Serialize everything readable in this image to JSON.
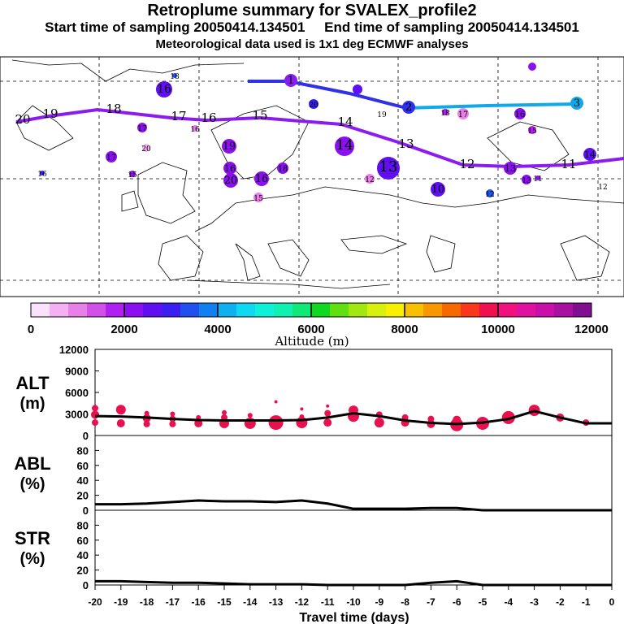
{
  "title": {
    "line1": "Retroplume summary for SVALEX_profile2",
    "line2": "Start time of sampling 20050414.134501     End time of sampling 20050414.134501",
    "line3": "Meteorological data used is 1x1 deg ECMWF analyses"
  },
  "colors": {
    "accent_line": "#000000",
    "altitude_dots": "#e8104f",
    "track_purple": "#8a1cf0",
    "track_blue": "#3030e8",
    "track_cyan": "#10a8e8"
  },
  "map": {
    "description": "Map of Europe / North Atlantic with retroplume tracks and cluster markers labelled by travel days",
    "main_track_labels": [
      "20",
      "19",
      "18",
      "17",
      "16",
      "15",
      "14",
      "13",
      "12",
      "11"
    ],
    "upper_track_labels": [
      "1",
      "2",
      "3"
    ],
    "cluster_labels": [
      "18",
      "16",
      "17",
      "16",
      "20",
      "17",
      "16",
      "15",
      "19",
      "16",
      "20",
      "16",
      "18",
      "15",
      "14",
      "13",
      "12",
      "10",
      "12",
      "13",
      "11",
      "12",
      "13",
      "14",
      "15",
      "16",
      "17",
      "18",
      "19",
      "20"
    ]
  },
  "colorbar": {
    "ticks": [
      "0",
      "2000",
      "4000",
      "6000",
      "8000",
      "10000",
      "12000"
    ],
    "label": "Altitude (m)",
    "colors": [
      "#fbe2fb",
      "#f4b0f4",
      "#e880e8",
      "#d050e8",
      "#b020f0",
      "#8a10f0",
      "#6010f0",
      "#3a20f0",
      "#2050f0",
      "#1080f0",
      "#10b0f0",
      "#10d8f0",
      "#10f0d8",
      "#10f0b0",
      "#10e878",
      "#10d820",
      "#60e010",
      "#a0e810",
      "#d8f010",
      "#f8f000",
      "#f8c000",
      "#f89800",
      "#f86800",
      "#f83818",
      "#f01050",
      "#f01080",
      "#e010a0",
      "#c810a8",
      "#a810a0",
      "#801090"
    ]
  },
  "chart_data": [
    {
      "type": "line",
      "panel": "ALT",
      "ylabel": "ALT\n(m)",
      "ylim": [
        0,
        12000
      ],
      "yticks": [
        "0",
        "3000",
        "6000",
        "9000",
        "12000"
      ],
      "x": [
        -20,
        -19,
        -18,
        -17,
        -16,
        -15,
        -14,
        -13,
        -12,
        -11,
        -10,
        -9,
        -8,
        -7,
        -6,
        -5,
        -4,
        -3,
        -2,
        -1,
        0
      ],
      "series": [
        {
          "name": "mean altitude",
          "values": [
            2700,
            2650,
            2500,
            2300,
            2150,
            2100,
            2100,
            2100,
            2150,
            2500,
            3100,
            2700,
            2100,
            1750,
            1600,
            1800,
            2300,
            3400,
            2500,
            1700,
            1700
          ]
        }
      ],
      "dots": [
        {
          "x": -20,
          "ys": [
            1800,
            2900,
            3800
          ],
          "r": [
            4,
            5,
            4
          ]
        },
        {
          "x": -19,
          "ys": [
            1700,
            3600
          ],
          "r": [
            5,
            6
          ]
        },
        {
          "x": -18,
          "ys": [
            1600,
            2400,
            3100
          ],
          "r": [
            4,
            5,
            3
          ]
        },
        {
          "x": -17,
          "ys": [
            1600,
            2300,
            3000
          ],
          "r": [
            4,
            4,
            3
          ]
        },
        {
          "x": -16,
          "ys": [
            1700,
            2500
          ],
          "r": [
            5,
            3
          ]
        },
        {
          "x": -15,
          "ys": [
            1700,
            2500,
            3200
          ],
          "r": [
            6,
            4,
            3
          ]
        },
        {
          "x": -14,
          "ys": [
            1700,
            2800
          ],
          "r": [
            7,
            3
          ]
        },
        {
          "x": -13,
          "ys": [
            1800,
            4700
          ],
          "r": [
            9,
            2
          ]
        },
        {
          "x": -12,
          "ys": [
            1800,
            2600,
            3700
          ],
          "r": [
            7,
            3,
            2
          ]
        },
        {
          "x": -11,
          "ys": [
            1800,
            3100,
            4100
          ],
          "r": [
            5,
            4,
            2
          ]
        },
        {
          "x": -10,
          "ys": [
            2700,
            3500
          ],
          "r": [
            7,
            6
          ]
        },
        {
          "x": -9,
          "ys": [
            1800,
            2900
          ],
          "r": [
            6,
            4
          ]
        },
        {
          "x": -8,
          "ys": [
            1800,
            2500
          ],
          "r": [
            5,
            4
          ]
        },
        {
          "x": -7,
          "ys": [
            1600,
            2300
          ],
          "r": [
            5,
            4
          ]
        },
        {
          "x": -6,
          "ys": [
            1500,
            2200
          ],
          "r": [
            8,
            5
          ]
        },
        {
          "x": -5,
          "ys": [
            1700
          ],
          "r": [
            8
          ]
        },
        {
          "x": -4,
          "ys": [
            2500
          ],
          "r": [
            8
          ]
        },
        {
          "x": -3,
          "ys": [
            3500
          ],
          "r": [
            7
          ]
        },
        {
          "x": -2,
          "ys": [
            2500
          ],
          "r": [
            5
          ]
        },
        {
          "x": -1,
          "ys": [
            1800
          ],
          "r": [
            4
          ]
        }
      ]
    },
    {
      "type": "line",
      "panel": "ABL",
      "ylabel": "ABL\n(%)",
      "ylim": [
        0,
        100
      ],
      "yticks": [
        "0",
        "20",
        "40",
        "60",
        "80"
      ],
      "x": [
        -20,
        -19,
        -18,
        -17,
        -16,
        -15,
        -14,
        -13,
        -12,
        -11,
        -10,
        -9,
        -8,
        -7,
        -6,
        -5,
        -4,
        -3,
        -2,
        -1,
        0
      ],
      "series": [
        {
          "name": "ABL fraction",
          "values": [
            8,
            8,
            9,
            11,
            13,
            12,
            12,
            11,
            13,
            9,
            2,
            2,
            2,
            3,
            3,
            0,
            0,
            0,
            0,
            0,
            0
          ]
        }
      ]
    },
    {
      "type": "line",
      "panel": "STR",
      "ylabel": "STR\n(%)",
      "ylim": [
        0,
        100
      ],
      "yticks": [
        "0",
        "20",
        "40",
        "60",
        "80"
      ],
      "x": [
        -20,
        -19,
        -18,
        -17,
        -16,
        -15,
        -14,
        -13,
        -12,
        -11,
        -10,
        -9,
        -8,
        -7,
        -6,
        -5,
        -4,
        -3,
        -2,
        -1,
        0
      ],
      "series": [
        {
          "name": "stratospheric fraction",
          "values": [
            5,
            5,
            4,
            3,
            3,
            2,
            1,
            1,
            1,
            0,
            0,
            0,
            0,
            3,
            5,
            0,
            0,
            0,
            0,
            0,
            0
          ]
        }
      ]
    }
  ],
  "xaxis": {
    "label": "Travel time (days)",
    "ticks": [
      "-20",
      "-19",
      "-18",
      "-17",
      "-16",
      "-15",
      "-14",
      "-13",
      "-12",
      "-11",
      "-10",
      "-9",
      "-8",
      "-7",
      "-6",
      "-5",
      "-4",
      "-3",
      "-2",
      "-1",
      "0"
    ]
  }
}
